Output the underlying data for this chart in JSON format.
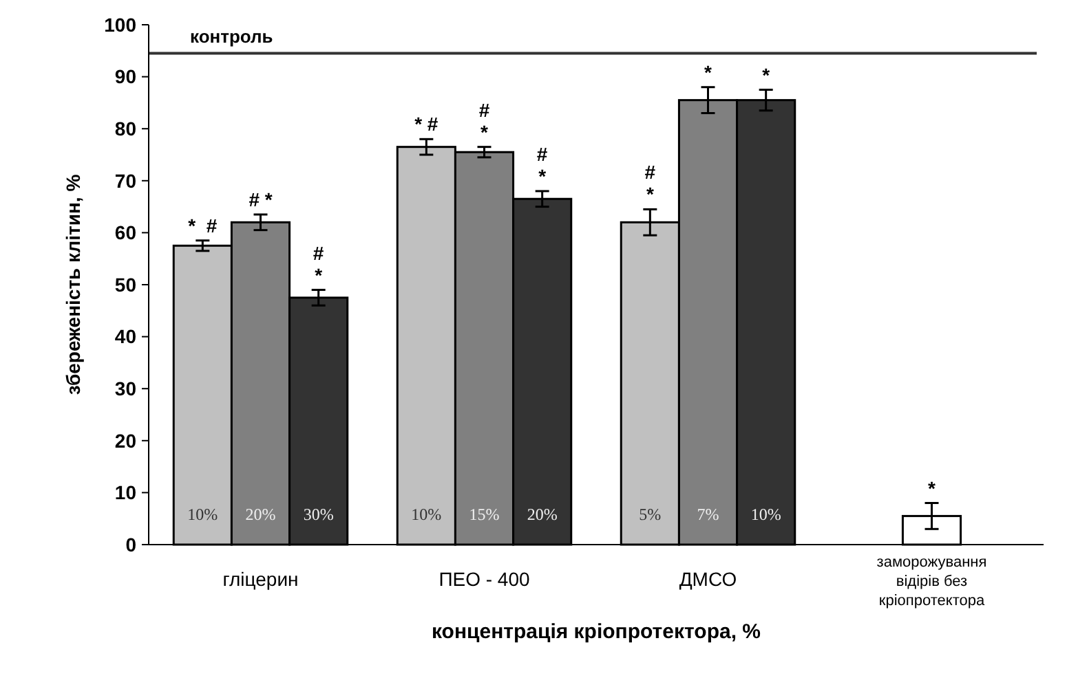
{
  "chart_data": {
    "type": "bar",
    "xlabel": "концентрація кріопротектора, %",
    "ylabel": "збереженість клітин, %",
    "categories": [
      "гліцерин",
      "ПЕО - 400",
      "ДМСО",
      "заморожування\nвідірів без\nкріопротектора"
    ],
    "series": [
      {
        "color": "#c0c0c0",
        "values": [
          57.5,
          76.5,
          62,
          null
        ],
        "errors": [
          1,
          1.5,
          2.5,
          null
        ],
        "value_labels": [
          "*  #",
          "* #",
          "#\n*",
          null
        ]
      },
      {
        "color": "#808080",
        "values": [
          62,
          75.5,
          85.5,
          null
        ],
        "errors": [
          1.5,
          1,
          2.5,
          null
        ],
        "value_labels": [
          "# *",
          "#\n*",
          "*",
          null
        ]
      },
      {
        "color": "#333333",
        "values": [
          47.5,
          66.5,
          85.5,
          null
        ],
        "errors": [
          1.5,
          1.5,
          2,
          null
        ],
        "value_labels": [
          "#\n*",
          "#\n*",
          "*",
          null
        ]
      },
      {
        "color": "#ffffff",
        "values": [
          null,
          null,
          null,
          5.5
        ],
        "errors": [
          null,
          null,
          null,
          2.5
        ],
        "value_labels": [
          null,
          null,
          null,
          "*"
        ]
      }
    ],
    "annotations": [
      "10%",
      "20%",
      "30%",
      "10%",
      "15%",
      "20%",
      "5%",
      "7%",
      "10%"
    ],
    "ref_lines": [
      {
        "axis": "y",
        "value": 94.5,
        "label": "контроль"
      }
    ],
    "ylim": [
      0,
      100
    ],
    "yticks": [
      0,
      10,
      20,
      30,
      40,
      50,
      60,
      70,
      80,
      90,
      100
    ]
  }
}
